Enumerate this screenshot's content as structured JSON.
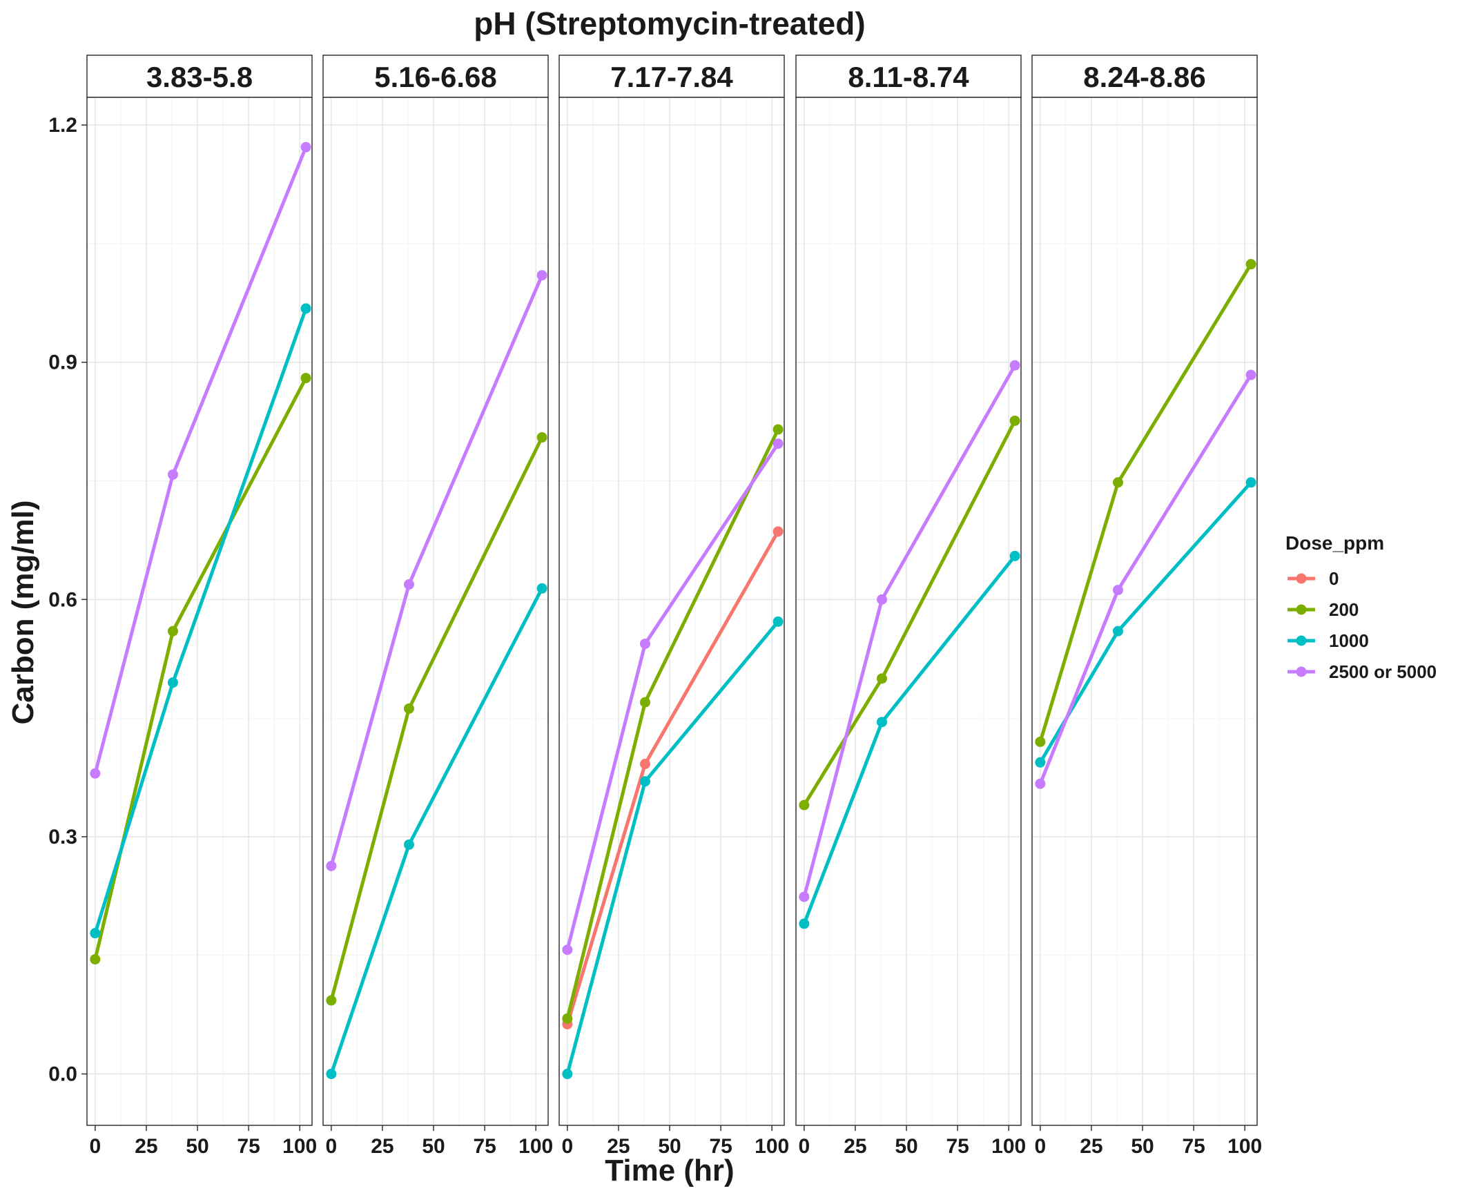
{
  "chart_data": {
    "type": "line",
    "title": "pH (Streptomycin-treated)",
    "xlabel": "Time (hr)",
    "ylabel": "Carbon (mg/ml)",
    "xlim": [
      -4,
      106
    ],
    "ylim": [
      -0.065,
      1.235
    ],
    "xticks": [
      0,
      25,
      50,
      75,
      100
    ],
    "yticks": [
      0.0,
      0.3,
      0.6,
      0.9,
      1.2
    ],
    "ytick_labels": [
      "0.0",
      "0.3",
      "0.6",
      "0.9",
      "1.2"
    ],
    "grid": true,
    "legend": {
      "title": "Dose_ppm",
      "position": "right",
      "entries": [
        {
          "label": "0",
          "color": "#F8766D"
        },
        {
          "label": "200",
          "color": "#7CAE00"
        },
        {
          "label": "1000",
          "color": "#00BFC4"
        },
        {
          "label": "2500 or 5000",
          "color": "#C77CFF"
        }
      ]
    },
    "panels": [
      {
        "label": "3.83-5.8",
        "series": [
          {
            "name": "200",
            "color": "#7CAE00",
            "x": [
              0,
              38,
              103
            ],
            "y": [
              0.145,
              0.56,
              0.88
            ]
          },
          {
            "name": "1000",
            "color": "#00BFC4",
            "x": [
              0,
              38,
              103
            ],
            "y": [
              0.178,
              0.495,
              0.968
            ]
          },
          {
            "name": "2500 or 5000",
            "color": "#C77CFF",
            "x": [
              0,
              38,
              103
            ],
            "y": [
              0.38,
              0.758,
              1.172
            ]
          }
        ]
      },
      {
        "label": "5.16-6.68",
        "series": [
          {
            "name": "200",
            "color": "#7CAE00",
            "x": [
              0,
              38,
              103
            ],
            "y": [
              0.093,
              0.462,
              0.805
            ]
          },
          {
            "name": "1000",
            "color": "#00BFC4",
            "x": [
              0,
              38,
              103
            ],
            "y": [
              0.0,
              0.29,
              0.614
            ]
          },
          {
            "name": "2500 or 5000",
            "color": "#C77CFF",
            "x": [
              0,
              38,
              103
            ],
            "y": [
              0.263,
              0.619,
              1.01
            ]
          }
        ]
      },
      {
        "label": "7.17-7.84",
        "series": [
          {
            "name": "0",
            "color": "#F8766D",
            "x": [
              0,
              38,
              103
            ],
            "y": [
              0.063,
              0.392,
              0.686
            ]
          },
          {
            "name": "200",
            "color": "#7CAE00",
            "x": [
              0,
              38,
              103
            ],
            "y": [
              0.07,
              0.47,
              0.815
            ]
          },
          {
            "name": "1000",
            "color": "#00BFC4",
            "x": [
              0,
              38,
              103
            ],
            "y": [
              0.0,
              0.37,
              0.572
            ]
          },
          {
            "name": "2500 or 5000",
            "color": "#C77CFF",
            "x": [
              0,
              38,
              103
            ],
            "y": [
              0.157,
              0.544,
              0.797
            ]
          }
        ]
      },
      {
        "label": "8.11-8.74",
        "series": [
          {
            "name": "200",
            "color": "#7CAE00",
            "x": [
              0,
              38,
              103
            ],
            "y": [
              0.34,
              0.5,
              0.826
            ]
          },
          {
            "name": "1000",
            "color": "#00BFC4",
            "x": [
              0,
              38,
              103
            ],
            "y": [
              0.19,
              0.445,
              0.655
            ]
          },
          {
            "name": "2500 or 5000",
            "color": "#C77CFF",
            "x": [
              0,
              38,
              103
            ],
            "y": [
              0.224,
              0.6,
              0.896
            ]
          }
        ]
      },
      {
        "label": "8.24-8.86",
        "series": [
          {
            "name": "200",
            "color": "#7CAE00",
            "x": [
              0,
              38,
              103
            ],
            "y": [
              0.42,
              0.748,
              1.024
            ]
          },
          {
            "name": "1000",
            "color": "#00BFC4",
            "x": [
              0,
              38,
              103
            ],
            "y": [
              0.394,
              0.56,
              0.748
            ]
          },
          {
            "name": "2500 or 5000",
            "color": "#C77CFF",
            "x": [
              0,
              38,
              103
            ],
            "y": [
              0.367,
              0.612,
              0.884
            ]
          }
        ]
      }
    ]
  }
}
